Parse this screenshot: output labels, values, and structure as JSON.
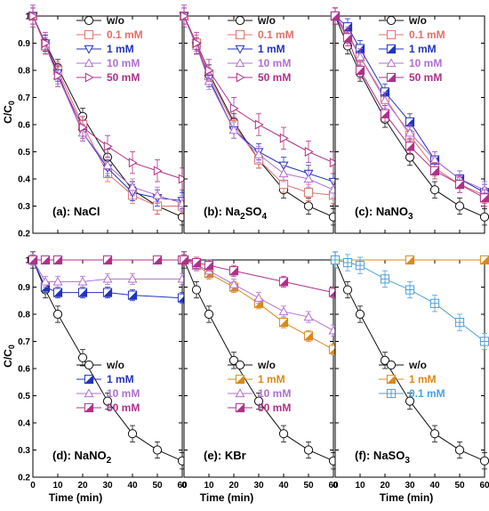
{
  "figure": {
    "ylabel_main": "C/C",
    "ylabel_sub": "0",
    "xlabel": "Time (min)"
  },
  "chart_data": [
    {
      "type": "line",
      "panel_label": "(a): NaCl",
      "label_main": "(a): NaCl",
      "label_sub": "",
      "ylim": [
        0.2,
        1.0
      ],
      "xlim": [
        0,
        60
      ],
      "xticks": [
        0,
        10,
        20,
        30,
        40,
        50,
        60
      ],
      "yticks": [
        0.2,
        0.3,
        0.4,
        0.5,
        0.6,
        0.7,
        0.8,
        0.9,
        1
      ],
      "legend": "top-right",
      "series": [
        {
          "name": "w/o",
          "marker": "circle",
          "color": "#111111",
          "x": [
            0,
            5,
            10,
            20,
            30,
            40,
            50,
            60
          ],
          "y": [
            1,
            0.9,
            0.81,
            0.63,
            0.48,
            0.36,
            0.3,
            0.26
          ],
          "err": 0.03
        },
        {
          "name": "0.1 mM",
          "marker": "square-open",
          "color": "#e0706a",
          "x": [
            0,
            5,
            10,
            20,
            30,
            40,
            50,
            60
          ],
          "y": [
            1,
            0.89,
            0.8,
            0.6,
            0.42,
            0.34,
            0.3,
            0.3
          ],
          "err": 0.03
        },
        {
          "name": "1 mM",
          "marker": "triangle-down-open",
          "color": "#2233bb",
          "x": [
            0,
            5,
            10,
            20,
            30,
            40,
            50,
            60
          ],
          "y": [
            1,
            0.9,
            0.79,
            0.57,
            0.44,
            0.35,
            0.33,
            0.32
          ],
          "err": 0.03
        },
        {
          "name": "10 mM",
          "marker": "triangle-up-open",
          "color": "#b070d0",
          "x": [
            0,
            5,
            10,
            20,
            30,
            40,
            50,
            60
          ],
          "y": [
            1,
            0.89,
            0.78,
            0.57,
            0.45,
            0.37,
            0.34,
            0.31
          ],
          "err": 0.03
        },
        {
          "name": "50 mM",
          "marker": "triangle-right-open",
          "color": "#b0308a",
          "x": [
            0,
            5,
            10,
            20,
            30,
            40,
            50,
            60
          ],
          "y": [
            1,
            0.9,
            0.78,
            0.59,
            0.52,
            0.46,
            0.43,
            0.4
          ],
          "err": 0.04
        }
      ]
    },
    {
      "type": "line",
      "panel_label": "(b): Na2SO4",
      "label_main": "(b): Na",
      "label_sub": "2",
      "label_mid": "SO",
      "label_sub2": "4",
      "ylim": [
        0.2,
        1.0
      ],
      "xlim": [
        0,
        60
      ],
      "xticks": [
        0,
        10,
        20,
        30,
        40,
        50,
        60
      ],
      "yticks": [
        0.2,
        0.3,
        0.4,
        0.5,
        0.6,
        0.7,
        0.8,
        0.9,
        1
      ],
      "legend": "top-right",
      "series": [
        {
          "name": "w/o",
          "marker": "circle",
          "color": "#111111",
          "x": [
            0,
            5,
            10,
            20,
            30,
            40,
            50,
            60
          ],
          "y": [
            1,
            0.89,
            0.79,
            0.61,
            0.47,
            0.36,
            0.3,
            0.26
          ],
          "err": 0.03
        },
        {
          "name": "0.1 mM",
          "marker": "square-open",
          "color": "#e0706a",
          "x": [
            0,
            5,
            10,
            20,
            30,
            40,
            50,
            60
          ],
          "y": [
            1,
            0.9,
            0.78,
            0.6,
            0.47,
            0.38,
            0.35,
            0.34
          ],
          "err": 0.03
        },
        {
          "name": "1 mM",
          "marker": "triangle-down-open",
          "color": "#2233bb",
          "x": [
            0,
            5,
            10,
            20,
            30,
            40,
            50,
            60
          ],
          "y": [
            1,
            0.89,
            0.77,
            0.58,
            0.5,
            0.45,
            0.42,
            0.39
          ],
          "err": 0.03
        },
        {
          "name": "10 mM",
          "marker": "triangle-up-open",
          "color": "#b070d0",
          "x": [
            0,
            5,
            10,
            20,
            30,
            40,
            50,
            60
          ],
          "y": [
            1,
            0.89,
            0.76,
            0.58,
            0.49,
            0.42,
            0.4,
            0.36
          ],
          "err": 0.03
        },
        {
          "name": "50 mM",
          "marker": "triangle-right-open",
          "color": "#b0308a",
          "x": [
            0,
            5,
            10,
            20,
            30,
            40,
            50,
            60
          ],
          "y": [
            1,
            0.9,
            0.8,
            0.66,
            0.6,
            0.55,
            0.5,
            0.46
          ],
          "err": 0.04
        }
      ]
    },
    {
      "type": "line",
      "panel_label": "(c): NaNO3",
      "label_main": "(c): NaNO",
      "label_sub": "3",
      "ylim": [
        0.2,
        1.0
      ],
      "xlim": [
        0,
        60
      ],
      "xticks": [
        0,
        10,
        20,
        30,
        40,
        50,
        60
      ],
      "yticks": [
        0.2,
        0.3,
        0.4,
        0.5,
        0.6,
        0.7,
        0.8,
        0.9,
        1
      ],
      "legend": "top-right",
      "series": [
        {
          "name": "w/o",
          "marker": "circle",
          "color": "#111111",
          "x": [
            0,
            5,
            10,
            20,
            30,
            40,
            50,
            60
          ],
          "y": [
            1,
            0.89,
            0.79,
            0.62,
            0.48,
            0.36,
            0.3,
            0.26
          ],
          "err": 0.03
        },
        {
          "name": "0.1 mM",
          "marker": "square-open",
          "color": "#e0706a",
          "x": [
            0,
            5,
            10,
            20,
            30,
            40,
            50,
            60
          ],
          "y": [
            1,
            0.94,
            0.85,
            0.7,
            0.56,
            0.44,
            0.38,
            0.34
          ],
          "err": 0.03
        },
        {
          "name": "1 mM",
          "marker": "square-half",
          "color": "#2233bb",
          "x": [
            0,
            5,
            10,
            20,
            30,
            40,
            50,
            60
          ],
          "y": [
            1,
            0.96,
            0.88,
            0.72,
            0.61,
            0.47,
            0.4,
            0.35
          ],
          "err": 0.03
        },
        {
          "name": "10 mM",
          "marker": "triangle-up-open",
          "color": "#b070d0",
          "x": [
            0,
            5,
            10,
            20,
            30,
            40,
            50,
            60
          ],
          "y": [
            1,
            0.93,
            0.85,
            0.69,
            0.57,
            0.47,
            0.4,
            0.36
          ],
          "err": 0.03
        },
        {
          "name": "50 mM",
          "marker": "square-half",
          "color": "#b0308a",
          "x": [
            0,
            5,
            10,
            20,
            30,
            40,
            50,
            60
          ],
          "y": [
            1,
            0.92,
            0.8,
            0.64,
            0.52,
            0.43,
            0.38,
            0.33
          ],
          "err": 0.03
        }
      ]
    },
    {
      "type": "line",
      "panel_label": "(d): NaNO2",
      "label_main": "(d): NaNO",
      "label_sub": "2",
      "ylim": [
        0.2,
        1.0
      ],
      "xlim": [
        0,
        60
      ],
      "xticks": [
        0,
        10,
        20,
        30,
        40,
        50,
        60
      ],
      "yticks": [
        0.2,
        0.3,
        0.4,
        0.5,
        0.6,
        0.7,
        0.8,
        0.9,
        1
      ],
      "legend": "center-right",
      "series": [
        {
          "name": "w/o",
          "marker": "circle",
          "color": "#111111",
          "x": [
            0,
            5,
            10,
            20,
            30,
            40,
            50,
            60
          ],
          "y": [
            1,
            0.89,
            0.8,
            0.64,
            0.48,
            0.36,
            0.3,
            0.26
          ],
          "err": 0.03
        },
        {
          "name": "1 mM",
          "marker": "square-half",
          "color": "#2233bb",
          "x": [
            0,
            5,
            10,
            20,
            30,
            40,
            60
          ],
          "y": [
            1,
            0.9,
            0.88,
            0.88,
            0.88,
            0.87,
            0.86
          ],
          "err": 0.02
        },
        {
          "name": "10 mM",
          "marker": "triangle-up-open",
          "color": "#b070d0",
          "x": [
            0,
            5,
            10,
            20,
            30,
            40,
            60
          ],
          "y": [
            1,
            0.92,
            0.92,
            0.92,
            0.93,
            0.93,
            0.93
          ],
          "err": 0.02
        },
        {
          "name": "50 mM",
          "marker": "square-half",
          "color": "#b0308a",
          "x": [
            0,
            5,
            10,
            30,
            50,
            60
          ],
          "y": [
            1,
            1,
            1,
            1,
            1,
            1
          ],
          "err": 0.01
        }
      ]
    },
    {
      "type": "line",
      "panel_label": "(e): KBr",
      "label_main": "(e): KBr",
      "label_sub": "",
      "ylim": [
        0.2,
        1.0
      ],
      "xlim": [
        0,
        60
      ],
      "xticks": [
        0,
        10,
        20,
        30,
        40,
        50,
        60
      ],
      "yticks": [
        0.2,
        0.3,
        0.4,
        0.5,
        0.6,
        0.7,
        0.8,
        0.9,
        1
      ],
      "legend": "center-right",
      "series": [
        {
          "name": "w/o",
          "marker": "circle",
          "color": "#111111",
          "x": [
            0,
            5,
            10,
            20,
            30,
            40,
            50,
            60
          ],
          "y": [
            1,
            0.89,
            0.8,
            0.63,
            0.48,
            0.36,
            0.3,
            0.26
          ],
          "err": 0.03
        },
        {
          "name": "1 mM",
          "marker": "square-half",
          "color": "#d98a1a",
          "x": [
            0,
            5,
            10,
            20,
            30,
            40,
            50,
            60
          ],
          "y": [
            1,
            0.98,
            0.95,
            0.9,
            0.84,
            0.77,
            0.72,
            0.67
          ],
          "err": 0.02
        },
        {
          "name": "10 mM",
          "marker": "triangle-up-open",
          "color": "#b070d0",
          "x": [
            0,
            5,
            10,
            20,
            30,
            40,
            50,
            60
          ],
          "y": [
            1,
            0.98,
            0.96,
            0.91,
            0.86,
            0.81,
            0.79,
            0.74
          ],
          "err": 0.02
        },
        {
          "name": "50 mM",
          "marker": "square-half",
          "color": "#b0308a",
          "x": [
            0,
            5,
            10,
            20,
            40,
            60
          ],
          "y": [
            1,
            0.99,
            0.98,
            0.96,
            0.92,
            0.88
          ],
          "err": 0.02
        }
      ]
    },
    {
      "type": "line",
      "panel_label": "(f): NaSO3",
      "label_main": "(f): NaSO",
      "label_sub": "3",
      "ylim": [
        0.2,
        1.0
      ],
      "xlim": [
        0,
        60
      ],
      "xticks": [
        0,
        10,
        20,
        30,
        40,
        50,
        60
      ],
      "yticks": [
        0.2,
        0.3,
        0.4,
        0.5,
        0.6,
        0.7,
        0.8,
        0.9,
        1
      ],
      "legend": "center-right",
      "series": [
        {
          "name": "w/o",
          "marker": "circle",
          "color": "#111111",
          "x": [
            0,
            5,
            10,
            20,
            30,
            40,
            50,
            60
          ],
          "y": [
            1,
            0.89,
            0.8,
            0.63,
            0.48,
            0.36,
            0.3,
            0.26
          ],
          "err": 0.03
        },
        {
          "name": "1 mM",
          "marker": "square-half",
          "color": "#d98a1a",
          "x": [
            0,
            30,
            60
          ],
          "y": [
            1,
            1,
            1
          ],
          "err": 0.0
        },
        {
          "name": "0.1 mM",
          "marker": "square-cross",
          "color": "#4aa0dd",
          "x": [
            0,
            5,
            10,
            20,
            30,
            40,
            50,
            60
          ],
          "y": [
            1,
            0.99,
            0.98,
            0.93,
            0.89,
            0.84,
            0.77,
            0.7
          ],
          "err": 0.03
        }
      ]
    }
  ]
}
